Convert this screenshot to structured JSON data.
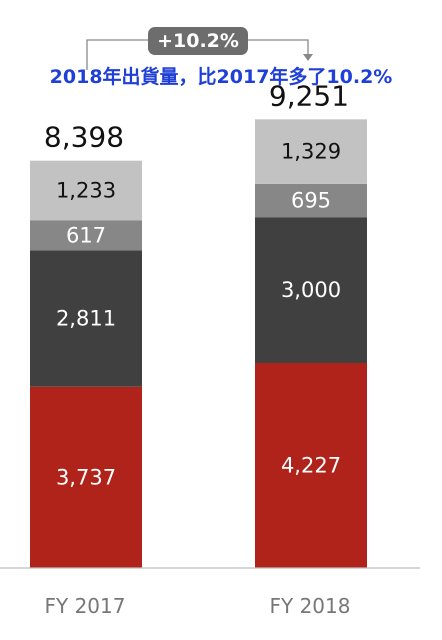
{
  "chart_data": {
    "type": "bar",
    "stacked": true,
    "categories": [
      "FY 2017",
      "FY 2018"
    ],
    "series": [
      {
        "values": [
          3737,
          4227
        ],
        "color": "#b0231b",
        "label_color": "#ffffff"
      },
      {
        "values": [
          2811,
          3000
        ],
        "color": "#404040",
        "label_color": "#ffffff"
      },
      {
        "values": [
          617,
          695
        ],
        "color": "#878787",
        "label_color": "#ffffff"
      },
      {
        "values": [
          1233,
          1329
        ],
        "color": "#c2c2c2",
        "label_color": "#111111"
      }
    ],
    "totals": [
      "8,398",
      "9,251"
    ],
    "value_labels": [
      [
        "3,737",
        "2,811",
        "617",
        "1,233"
      ],
      [
        "4,227",
        "3,000",
        "695",
        "1,329"
      ]
    ],
    "growth_label": "+10.2%",
    "annotation": "2018年出貨量，比2017年多了10.2%",
    "annotation_color": "#1f3fd6",
    "growth_badge_color": "#6d6d6d",
    "ylim": [
      0,
      10000
    ],
    "grid": false,
    "legend": "none"
  }
}
